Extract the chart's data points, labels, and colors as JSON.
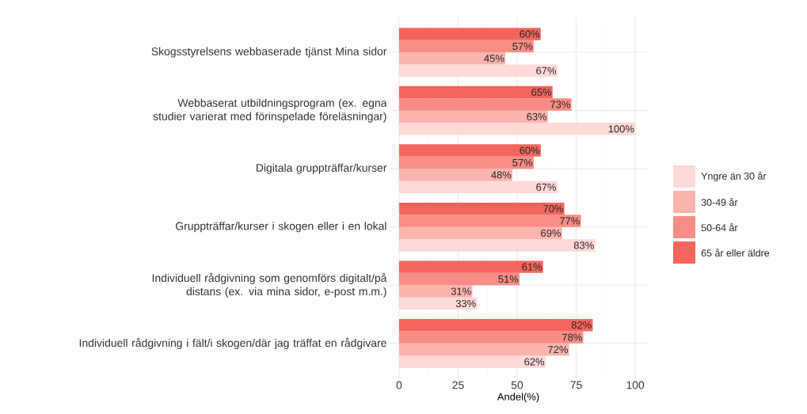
{
  "chart_data": {
    "type": "bar",
    "orientation": "horizontal",
    "xlabel": "Andel(%)",
    "categories": [
      "Skogsstyrelsens webbaserade tjänst Mina sidor",
      "Webbaserat utbildningsprogram (ex. egna studier varierat med förinspelade föreläsningar)",
      "Digitala gruppträffar/kurser",
      "Gruppträffar/kurser i skogen eller i en lokal",
      "Individuell rådgivning som genomförs digitalt/på distans (ex. via mina sidor, e-post m.m.)",
      "Individuell rådgivning i fält/i skogen/där jag träffat en rådgivare"
    ],
    "series": [
      {
        "name": "Yngre än 30 år",
        "color": "#fdd9d7",
        "values": [
          67,
          100,
          67,
          83,
          33,
          62
        ],
        "value_labels": [
          "67%",
          "100%",
          "67%",
          "83%",
          "33%",
          "62%"
        ]
      },
      {
        "name": "30-49 år",
        "color": "#fbb4ae",
        "values": [
          45,
          63,
          48,
          69,
          31,
          72
        ],
        "value_labels": [
          "45%",
          "63%",
          "48%",
          "69%",
          "31%",
          "72%"
        ]
      },
      {
        "name": "50-64 år",
        "color": "#f88d86",
        "values": [
          57,
          73,
          57,
          77,
          51,
          78
        ],
        "value_labels": [
          "57%",
          "73%",
          "57%",
          "77%",
          "51%",
          "78%"
        ]
      },
      {
        "name": "65 år eller äldre",
        "color": "#f4655d",
        "values": [
          60,
          65,
          60,
          70,
          61,
          82
        ],
        "value_labels": [
          "60%",
          "65%",
          "60%",
          "70%",
          "61%",
          "82%"
        ]
      }
    ],
    "xlim": [
      -4,
      105
    ],
    "xticks": [
      0,
      25,
      50,
      75,
      100
    ],
    "grid": true,
    "legend": "right"
  }
}
